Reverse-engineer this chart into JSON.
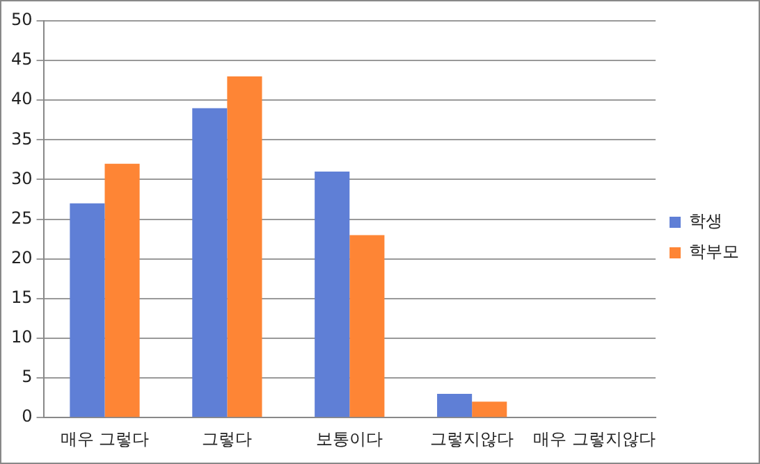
{
  "chart_data": {
    "type": "bar",
    "categories": [
      "매우 그렇다",
      "그렇다",
      "보통이다",
      "그렇지않다",
      "매우 그렇지않다"
    ],
    "series": [
      {
        "name": "학생",
        "color": "#5f7fd6",
        "values": [
          27,
          39,
          31,
          3,
          0
        ]
      },
      {
        "name": "학부모",
        "color": "#fe8535",
        "values": [
          32,
          43,
          23,
          2,
          0
        ]
      }
    ],
    "ylim": [
      0,
      50
    ],
    "yticks": [
      0,
      5,
      10,
      15,
      20,
      25,
      30,
      35,
      40,
      45,
      50
    ],
    "grid": "y",
    "legend": "right"
  }
}
